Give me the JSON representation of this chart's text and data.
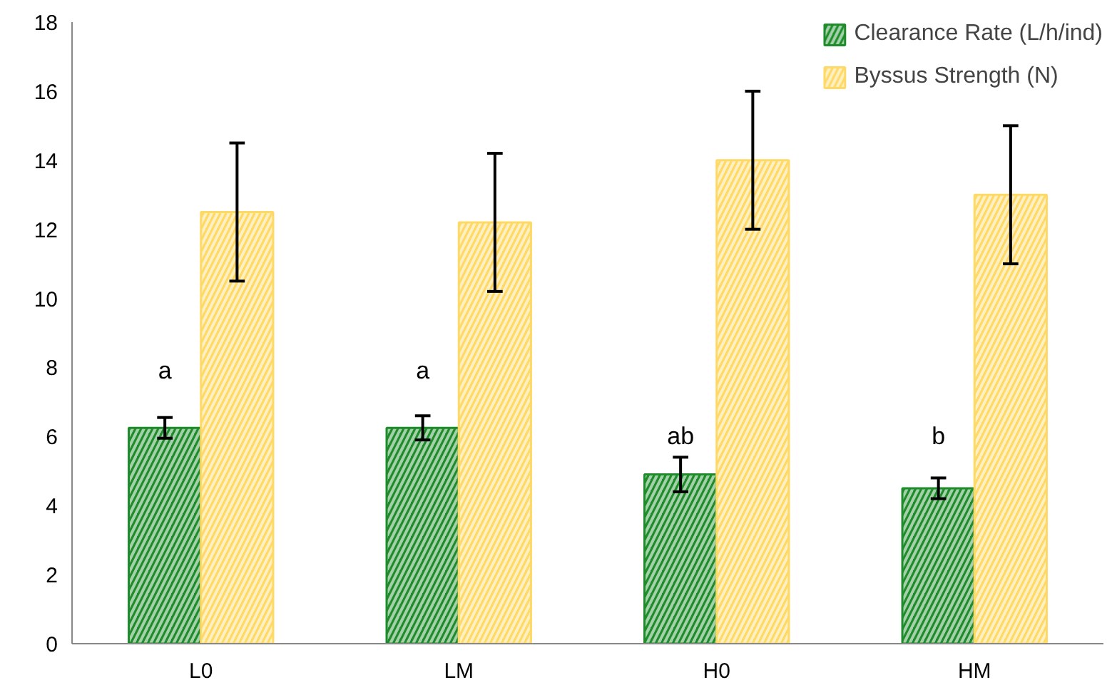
{
  "chart_data": {
    "type": "bar",
    "categories": [
      "L0",
      "LM",
      "H0",
      "HM"
    ],
    "series": [
      {
        "name": "Clearance Rate (L/h/ind)",
        "color": "#1e8c2a",
        "values": [
          6.25,
          6.25,
          4.9,
          4.5
        ],
        "errors": [
          0.3,
          0.35,
          0.5,
          0.3
        ]
      },
      {
        "name": "Byssus Strength (N)",
        "color": "#ffd966",
        "values": [
          12.5,
          12.2,
          14.0,
          13.0
        ],
        "errors": [
          2,
          2,
          2,
          2
        ]
      }
    ],
    "ylim": [
      0,
      18
    ],
    "yticks": [
      0,
      2,
      4,
      6,
      8,
      10,
      12,
      14,
      16,
      18
    ],
    "grid": false,
    "legend": "top right",
    "annotations": [
      {
        "text": "a",
        "x": "L0",
        "y": 7.9
      },
      {
        "text": "a",
        "x": "LM",
        "y": 7.9
      },
      {
        "text": "ab",
        "x": "H0",
        "y": 6.0
      },
      {
        "text": "b",
        "x": "HM",
        "y": 6.0
      }
    ]
  }
}
